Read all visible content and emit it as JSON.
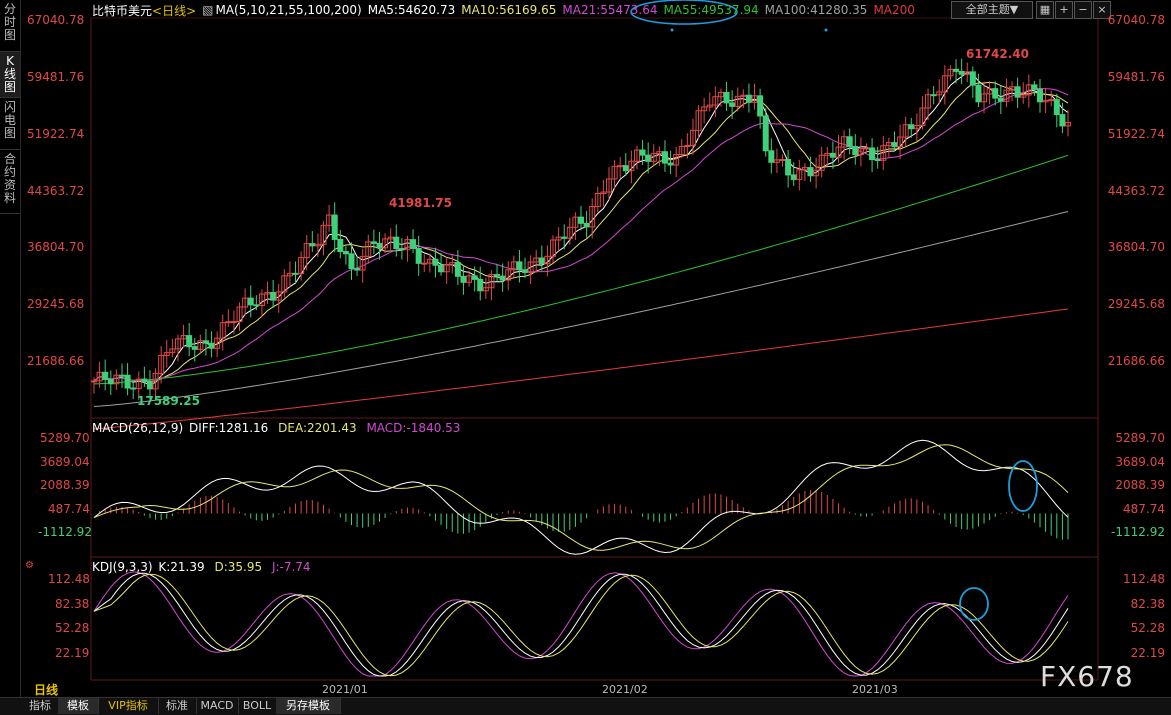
{
  "sidebar": {
    "tabs": [
      {
        "label": "分时图",
        "active": false
      },
      {
        "label": "K线图",
        "active": true
      },
      {
        "label": "闪电图",
        "active": false
      },
      {
        "label": "合约资料",
        "active": false
      }
    ]
  },
  "header": {
    "symbol": "比特币美元",
    "period": "<日线>",
    "ma_params": "MA(5,10,21,55,100,200)",
    "ma5": "MA5:54620.73",
    "ma10": "MA10:56169.65",
    "ma21": "MA21:55473.64",
    "ma55": "MA55:49537.94",
    "ma100": "MA100:41280.35",
    "ma200": "MA200",
    "theme_select": "全部主题▼"
  },
  "colors": {
    "up": "#e04848",
    "down": "#3fd07a",
    "ma5": "#ffffff",
    "ma10": "#e6e670",
    "ma21": "#d24ad2",
    "ma55": "#2ec22e",
    "ma100": "#a0a0a0",
    "ma200": "#e03a3a",
    "axis_red": "#e04848",
    "annot": "#1a9fe0"
  },
  "main_axis": [
    "67040.78",
    "59481.76",
    "51922.74",
    "44363.72",
    "36804.70",
    "29245.68",
    "21686.66"
  ],
  "annotations": {
    "high1": "41981.75",
    "high2": "61742.40",
    "low1": "17589.25"
  },
  "macd": {
    "title": "MACD(26,12,9)",
    "diff": "DIFF:1281.16",
    "dea": "DEA:2201.43",
    "macd": "MACD:-1840.53",
    "axis": [
      "5289.70",
      "3689.04",
      "2088.39",
      "487.74",
      "-1112.92"
    ]
  },
  "kdj": {
    "title": "KDJ(9,3,3)",
    "k": "K:21.39",
    "d": "D:35.95",
    "j": "J:-7.74",
    "axis": [
      "112.48",
      "82.38",
      "52.28",
      "22.19"
    ]
  },
  "x_axis": [
    "2021/01",
    "2021/02",
    "2021/03"
  ],
  "footer": {
    "period": "日线",
    "tabs": [
      "指标",
      "模板",
      "VIP指标",
      "标准",
      "MACD",
      "BOLL",
      "另存模板"
    ]
  },
  "watermark": "FX678",
  "chart_data": {
    "type": "candlestick",
    "title": "比特币美元 <日线>",
    "x": [
      "2021/01",
      "2021/02",
      "2021/03"
    ],
    "ylim": [
      17589.25,
      67040.78
    ],
    "highs": [
      41981.75,
      61742.4
    ],
    "low": 17589.25,
    "series": [
      {
        "name": "MA5",
        "last": 54620.73
      },
      {
        "name": "MA10",
        "last": 56169.65
      },
      {
        "name": "MA21",
        "last": 55473.64
      },
      {
        "name": "MA55",
        "last": 49537.94
      },
      {
        "name": "MA100",
        "last": 41280.35
      },
      {
        "name": "MA200",
        "last": null
      }
    ]
  }
}
